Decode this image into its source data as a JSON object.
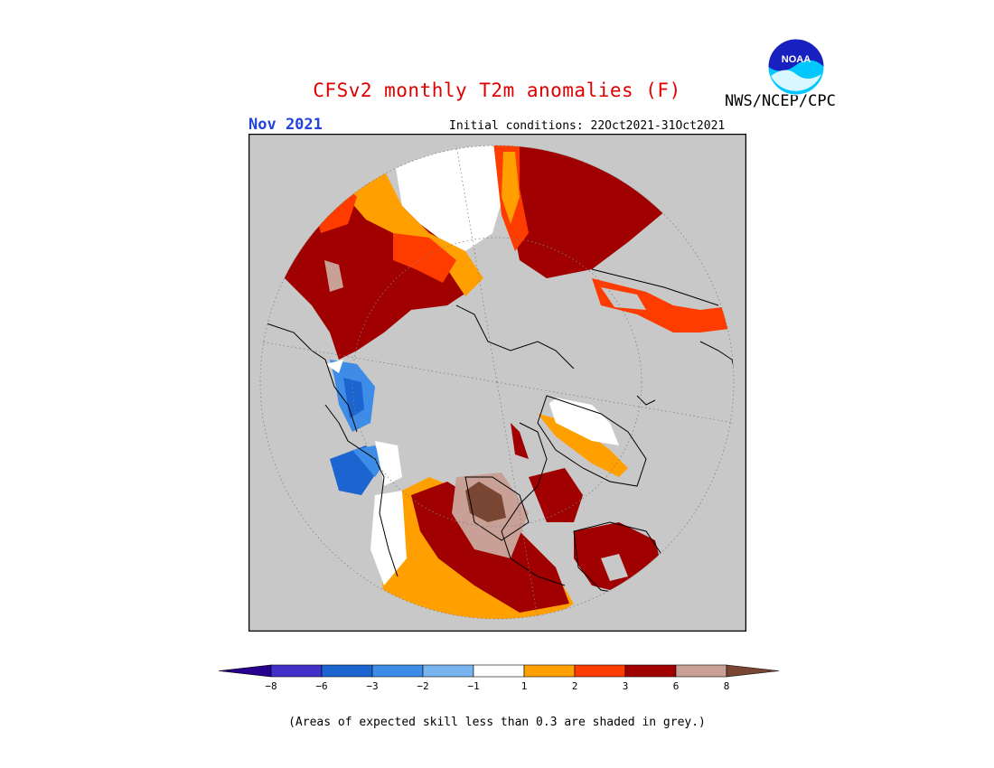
{
  "title": "CFSv2 monthly T2m anomalies (F)",
  "agency": "NWS/NCEP/CPC",
  "logo_text": "NOAA",
  "month": "Nov 2021",
  "initial_conditions": "Initial conditions: 22Oct2021-31Oct2021",
  "note": "(Areas of expected skill less than 0.3 are shaded in grey.)",
  "colors": {
    "skill_mask_grey": "#c8c8c8",
    "near_normal": "#ffffff"
  },
  "legend": {
    "labels": [
      "−8",
      "−6",
      "−3",
      "−2",
      "−1",
      "1",
      "2",
      "3",
      "6",
      "8"
    ],
    "bins": [
      {
        "color": "#280090"
      },
      {
        "color": "#4030c8"
      },
      {
        "color": "#1c64d0"
      },
      {
        "color": "#3c8ce8"
      },
      {
        "color": "#78b4f0"
      },
      {
        "color": "#ffffff"
      },
      {
        "color": "#ffa000"
      },
      {
        "color": "#ff3c00"
      },
      {
        "color": "#a00000"
      },
      {
        "color": "#c8a096"
      },
      {
        "color": "#784632"
      }
    ]
  }
}
